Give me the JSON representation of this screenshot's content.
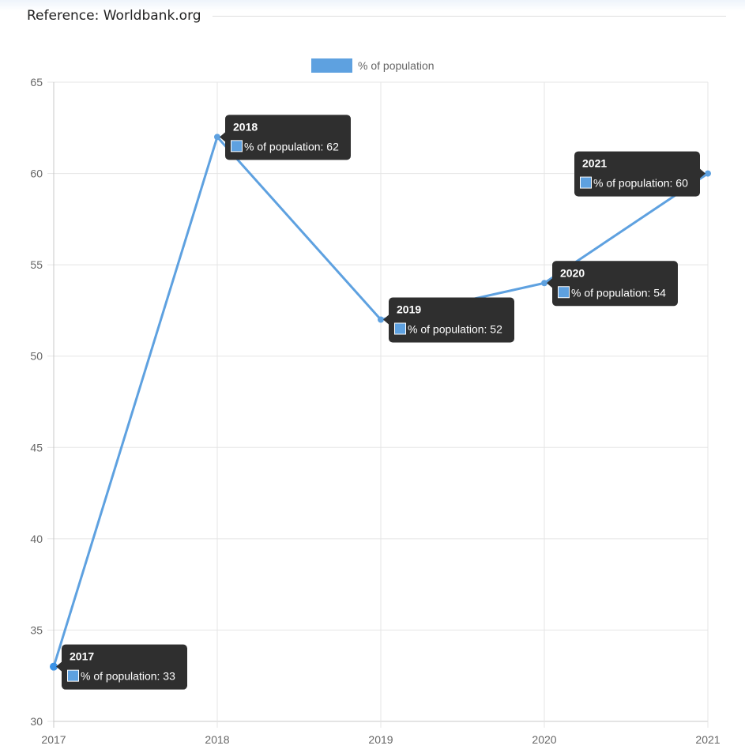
{
  "header": {
    "reference": "Reference: Worldbank.org"
  },
  "colors": {
    "series": "#5ea1e0",
    "point": "#3a92e6",
    "grid": "#e5e5e5",
    "tooltip_bg": "#2f2f2f"
  },
  "chart_data": {
    "type": "line",
    "x": [
      "2017",
      "2018",
      "2019",
      "2020",
      "2021"
    ],
    "series": [
      {
        "name": "% of population",
        "values": [
          33,
          62,
          52,
          54,
          60
        ]
      }
    ],
    "ylim": [
      30,
      65
    ],
    "yticks": [
      30,
      35,
      40,
      45,
      50,
      55,
      60,
      65
    ],
    "grid": true,
    "legend": "top-center",
    "tooltips": [
      {
        "title": "2017",
        "body": "% of population: 33"
      },
      {
        "title": "2018",
        "body": "% of population: 62"
      },
      {
        "title": "2019",
        "body": "% of population: 52"
      },
      {
        "title": "2020",
        "body": "% of population: 54"
      },
      {
        "title": "2021",
        "body": "% of population: 60"
      }
    ]
  }
}
